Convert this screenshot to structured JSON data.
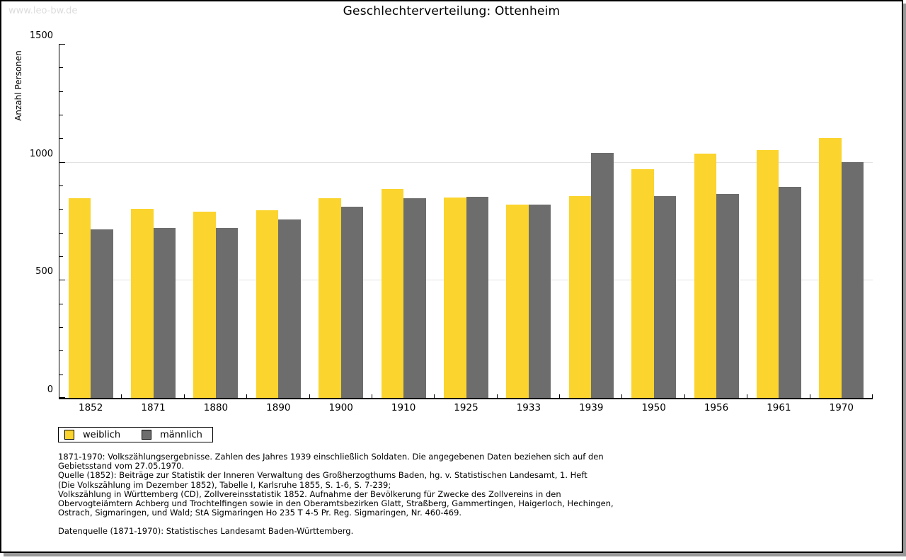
{
  "watermark": "www.leo-bw.de",
  "header": {
    "title": "Geschlechterverteilung: Ottenheim"
  },
  "chart_data": {
    "type": "bar",
    "title": "Geschlechterverteilung: Ottenheim",
    "xlabel": "",
    "ylabel": "Anzahl Personen",
    "categories": [
      "1852",
      "1871",
      "1880",
      "1890",
      "1900",
      "1910",
      "1925",
      "1933",
      "1939",
      "1950",
      "1956",
      "1961",
      "1970"
    ],
    "series": [
      {
        "name": "weiblich",
        "color": "#FBD42D",
        "values": [
          845,
          800,
          790,
          795,
          845,
          885,
          850,
          818,
          855,
          970,
          1035,
          1050,
          1100
        ]
      },
      {
        "name": "männlich",
        "color": "#6D6D6D",
        "values": [
          715,
          720,
          720,
          755,
          810,
          845,
          852,
          820,
          1038,
          855,
          865,
          895,
          1000
        ]
      }
    ],
    "ylim": [
      0,
      1500
    ],
    "y_major_step": 500,
    "y_minor_step": 100,
    "grid_values": [
      500,
      1000
    ],
    "grid_color": "#e2e2e2",
    "legend_position": "bottom-left",
    "legend_entries": [
      "weiblich",
      "männlich"
    ]
  },
  "footnotes": {
    "lines": [
      "1871-1970: Volkszählungsergebnisse. Zahlen des Jahres 1939 einschließlich Soldaten. Die angegebenen Daten beziehen sich auf den",
      "Gebietsstand vom 27.05.1970.",
      "Quelle (1852): Beiträge zur Statistik der Inneren Verwaltung des Großherzogthums Baden, hg. v. Statistischen Landesamt, 1. Heft",
      "(Die Volkszählung im Dezember 1852), Tabelle I, Karlsruhe 1855, S. 1-6, S. 7-239;",
      "Volkszählung in Württemberg (CD), Zollvereinsstatistik 1852. Aufnahme der Bevölkerung für Zwecke des Zollvereins in den",
      "Obervogteiämtern Achberg und Trochtelfingen sowie in den Oberamtsbezirken Glatt, Straßberg, Gammertingen, Haigerloch, Hechingen,",
      "Ostrach, Sigmaringen, und Wald; StA Sigmaringen Ho 235 T 4-5 Pr. Reg. Sigmaringen, Nr. 460-469."
    ],
    "datasource": "Datenquelle (1871-1970): Statistisches Landesamt Baden-Württemberg."
  }
}
